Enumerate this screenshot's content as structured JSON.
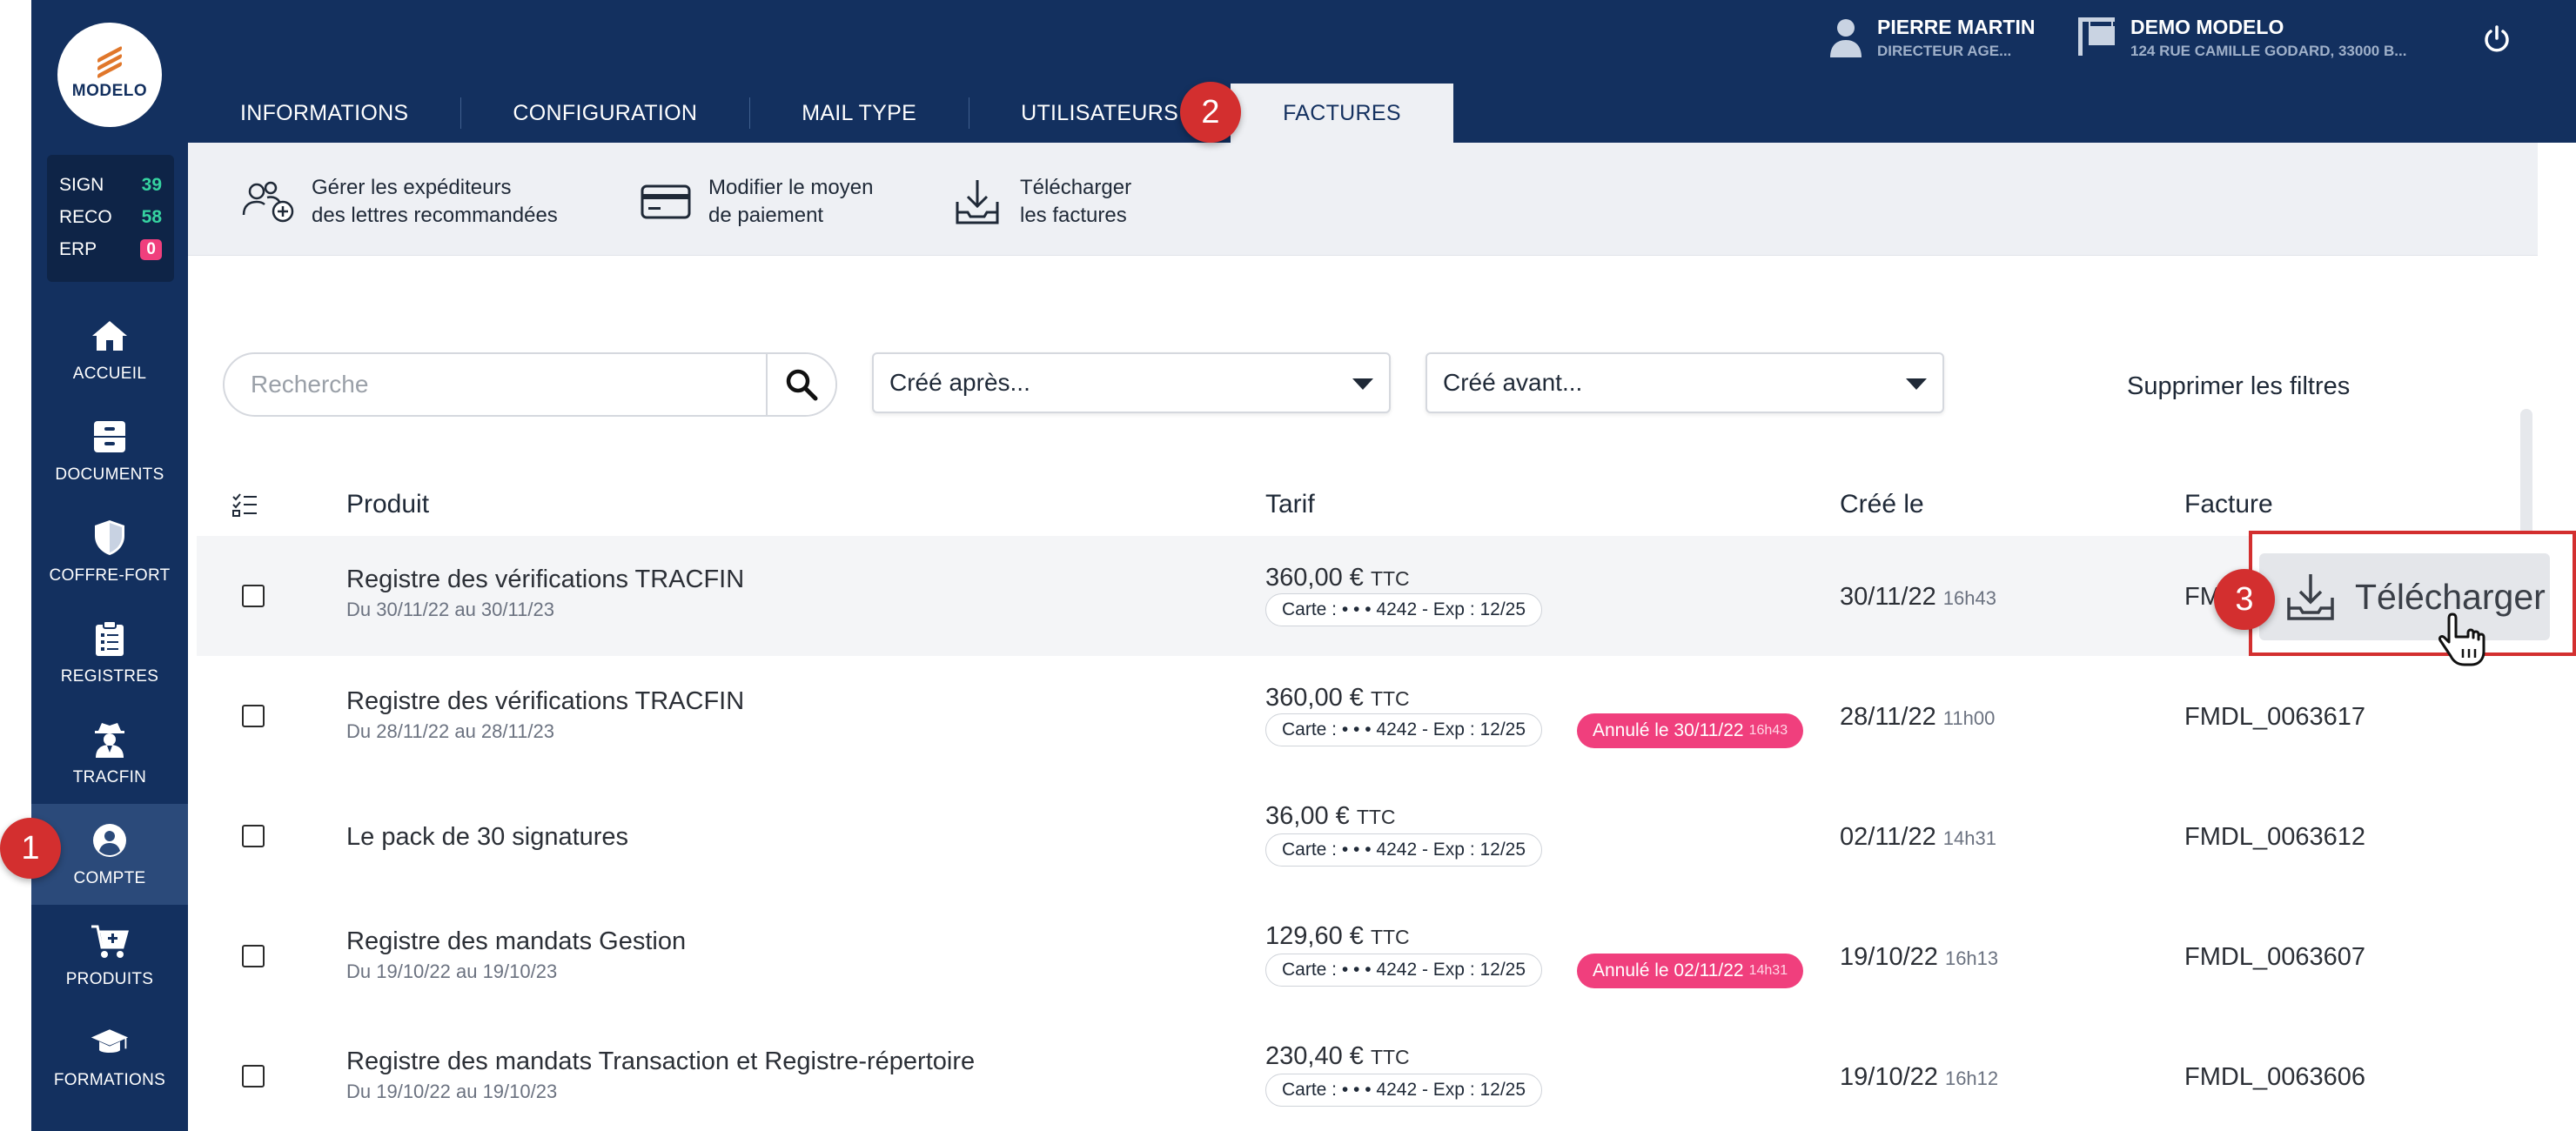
{
  "brand": {
    "name": "MODELO"
  },
  "counters": [
    {
      "label": "SIGN",
      "value": "39"
    },
    {
      "label": "RECO",
      "value": "58"
    },
    {
      "label": "ERP",
      "value": "0"
    }
  ],
  "nav": [
    {
      "label": "ACCUEIL",
      "icon": "home-icon"
    },
    {
      "label": "DOCUMENTS",
      "icon": "cabinet-icon"
    },
    {
      "label": "COFFRE-FORT",
      "icon": "shield-icon"
    },
    {
      "label": "REGISTRES",
      "icon": "clipboard-icon"
    },
    {
      "label": "TRACFIN",
      "icon": "detective-icon"
    },
    {
      "label": "COMPTE",
      "icon": "account-icon",
      "active": true
    },
    {
      "label": "PRODUITS",
      "icon": "cart-icon"
    },
    {
      "label": "FORMATIONS",
      "icon": "graduation-cap-icon"
    }
  ],
  "header": {
    "user_name": "PIERRE MARTIN",
    "user_role": "DIRECTEUR AGE...",
    "agency_name": "DEMO MODELO",
    "agency_address": "124 RUE CAMILLE GODARD, 33000 B..."
  },
  "tabs": [
    {
      "label": "INFORMATIONS"
    },
    {
      "label": "CONFIGURATION"
    },
    {
      "label": "MAIL TYPE"
    },
    {
      "label": "UTILISATEURS"
    },
    {
      "label": "FACTURES",
      "active": true
    }
  ],
  "toolbar": {
    "senders_line1": "Gérer les expéditeurs",
    "senders_line2": "des lettres recommandées",
    "payment_line1": "Modifier le moyen",
    "payment_line2": "de paiement",
    "download_line1": "Télécharger",
    "download_line2": "les factures"
  },
  "filters": {
    "search_placeholder": "Recherche",
    "created_after": "Créé après...",
    "created_before": "Créé avant...",
    "clear": "Supprimer les filtres"
  },
  "table": {
    "headers": {
      "product": "Produit",
      "price": "Tarif",
      "created": "Créé le",
      "invoice": "Facture"
    },
    "rows": [
      {
        "product": "Registre des vérifications TRACFIN",
        "dates": "Du 30/11/22 au 30/11/23",
        "price": "360,00 €",
        "ttc": "TTC",
        "card": "Carte : • • • 4242 - Exp : 12/25",
        "cancel": "",
        "cancel_time": "",
        "created": "30/11/22",
        "created_time": "16h43",
        "invoice": "FM"
      },
      {
        "product": "Registre des vérifications TRACFIN",
        "dates": "Du 28/11/22 au 28/11/23",
        "price": "360,00 €",
        "ttc": "TTC",
        "card": "Carte : • • • 4242 - Exp : 12/25",
        "cancel": "Annulé le 30/11/22",
        "cancel_time": "16h43",
        "created": "28/11/22",
        "created_time": "11h00",
        "invoice": "FMDL_0063617"
      },
      {
        "product": "Le pack de 30 signatures",
        "dates": "",
        "price": "36,00 €",
        "ttc": "TTC",
        "card": "Carte : • • • 4242 - Exp : 12/25",
        "cancel": "",
        "cancel_time": "",
        "created": "02/11/22",
        "created_time": "14h31",
        "invoice": "FMDL_0063612"
      },
      {
        "product": "Registre des mandats Gestion",
        "dates": "Du 19/10/22 au 19/10/23",
        "price": "129,60 €",
        "ttc": "TTC",
        "card": "Carte : • • • 4242 - Exp : 12/25",
        "cancel": "Annulé le 02/11/22",
        "cancel_time": "14h31",
        "created": "19/10/22",
        "created_time": "16h13",
        "invoice": "FMDL_0063607"
      },
      {
        "product": "Registre des mandats Transaction et Registre-répertoire",
        "dates": "Du 19/10/22 au 19/10/23",
        "price": "230,40 €",
        "ttc": "TTC",
        "card": "Carte : • • • 4242 - Exp : 12/25",
        "cancel": "",
        "cancel_time": "",
        "created": "19/10/22",
        "created_time": "16h12",
        "invoice": "FMDL_0063606"
      }
    ]
  },
  "download_button": {
    "label": "Télécharger"
  },
  "steps": [
    "1",
    "2",
    "3"
  ],
  "colors": {
    "navy": "#13305f",
    "active_nav": "#2b4a7a",
    "accent_green": "#36d3a0",
    "cancel_pink": "#f03f7d",
    "step_red": "#d32f2f"
  }
}
